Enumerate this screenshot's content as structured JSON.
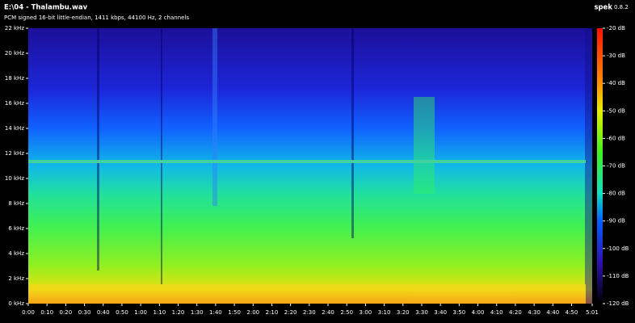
{
  "chart_data": {
    "type": "spectrogram",
    "title": "E:\\04 - Thalambu.wav",
    "subtitle": "PCM signed 16-bit little-endian, 1411 kbps, 44100 Hz, 2 channels",
    "app_name": "spek",
    "app_version": "0.8.2",
    "xlim": [
      0,
      301
    ],
    "xticks": [
      {
        "value": 0,
        "label": "0:00"
      },
      {
        "value": 10,
        "label": "0:10"
      },
      {
        "value": 20,
        "label": "0:20"
      },
      {
        "value": 30,
        "label": "0:30"
      },
      {
        "value": 40,
        "label": "0:40"
      },
      {
        "value": 50,
        "label": "0:50"
      },
      {
        "value": 60,
        "label": "1:00"
      },
      {
        "value": 70,
        "label": "1:10"
      },
      {
        "value": 80,
        "label": "1:20"
      },
      {
        "value": 90,
        "label": "1:30"
      },
      {
        "value": 100,
        "label": "1:40"
      },
      {
        "value": 110,
        "label": "1:50"
      },
      {
        "value": 120,
        "label": "2:00"
      },
      {
        "value": 130,
        "label": "2:10"
      },
      {
        "value": 140,
        "label": "2:20"
      },
      {
        "value": 150,
        "label": "2:30"
      },
      {
        "value": 160,
        "label": "2:40"
      },
      {
        "value": 170,
        "label": "2:50"
      },
      {
        "value": 180,
        "label": "3:00"
      },
      {
        "value": 190,
        "label": "3:10"
      },
      {
        "value": 200,
        "label": "3:20"
      },
      {
        "value": 210,
        "label": "3:30"
      },
      {
        "value": 220,
        "label": "3:40"
      },
      {
        "value": 230,
        "label": "3:50"
      },
      {
        "value": 240,
        "label": "4:00"
      },
      {
        "value": 250,
        "label": "4:10"
      },
      {
        "value": 260,
        "label": "4:20"
      },
      {
        "value": 270,
        "label": "4:30"
      },
      {
        "value": 280,
        "label": "4:40"
      },
      {
        "value": 290,
        "label": "4:50"
      },
      {
        "value": 301,
        "label": "5:01"
      }
    ],
    "ylim": [
      0,
      22
    ],
    "yticks": [
      {
        "value": 0,
        "label": "0 kHz"
      },
      {
        "value": 2,
        "label": "2 kHz"
      },
      {
        "value": 4,
        "label": "4 kHz"
      },
      {
        "value": 6,
        "label": "6 kHz"
      },
      {
        "value": 8,
        "label": "8 kHz"
      },
      {
        "value": 10,
        "label": "10 kHz"
      },
      {
        "value": 12,
        "label": "12 kHz"
      },
      {
        "value": 14,
        "label": "14 kHz"
      },
      {
        "value": 16,
        "label": "16 kHz"
      },
      {
        "value": 18,
        "label": "18 kHz"
      },
      {
        "value": 20,
        "label": "20 kHz"
      },
      {
        "value": 22,
        "label": "22 kHz"
      }
    ],
    "clim": [
      -120,
      -20
    ],
    "cticks": [
      {
        "value": -20,
        "label": "-20 dB"
      },
      {
        "value": -30,
        "label": "-30 dB"
      },
      {
        "value": -40,
        "label": "-40 dB"
      },
      {
        "value": -50,
        "label": "-50 dB"
      },
      {
        "value": -60,
        "label": "-60 dB"
      },
      {
        "value": -70,
        "label": "-70 dB"
      },
      {
        "value": -80,
        "label": "-80 dB"
      },
      {
        "value": -90,
        "label": "-90 dB"
      },
      {
        "value": -100,
        "label": "-100 dB"
      },
      {
        "value": -110,
        "label": "-110 dB"
      },
      {
        "value": -120,
        "label": "-120 dB"
      }
    ]
  }
}
